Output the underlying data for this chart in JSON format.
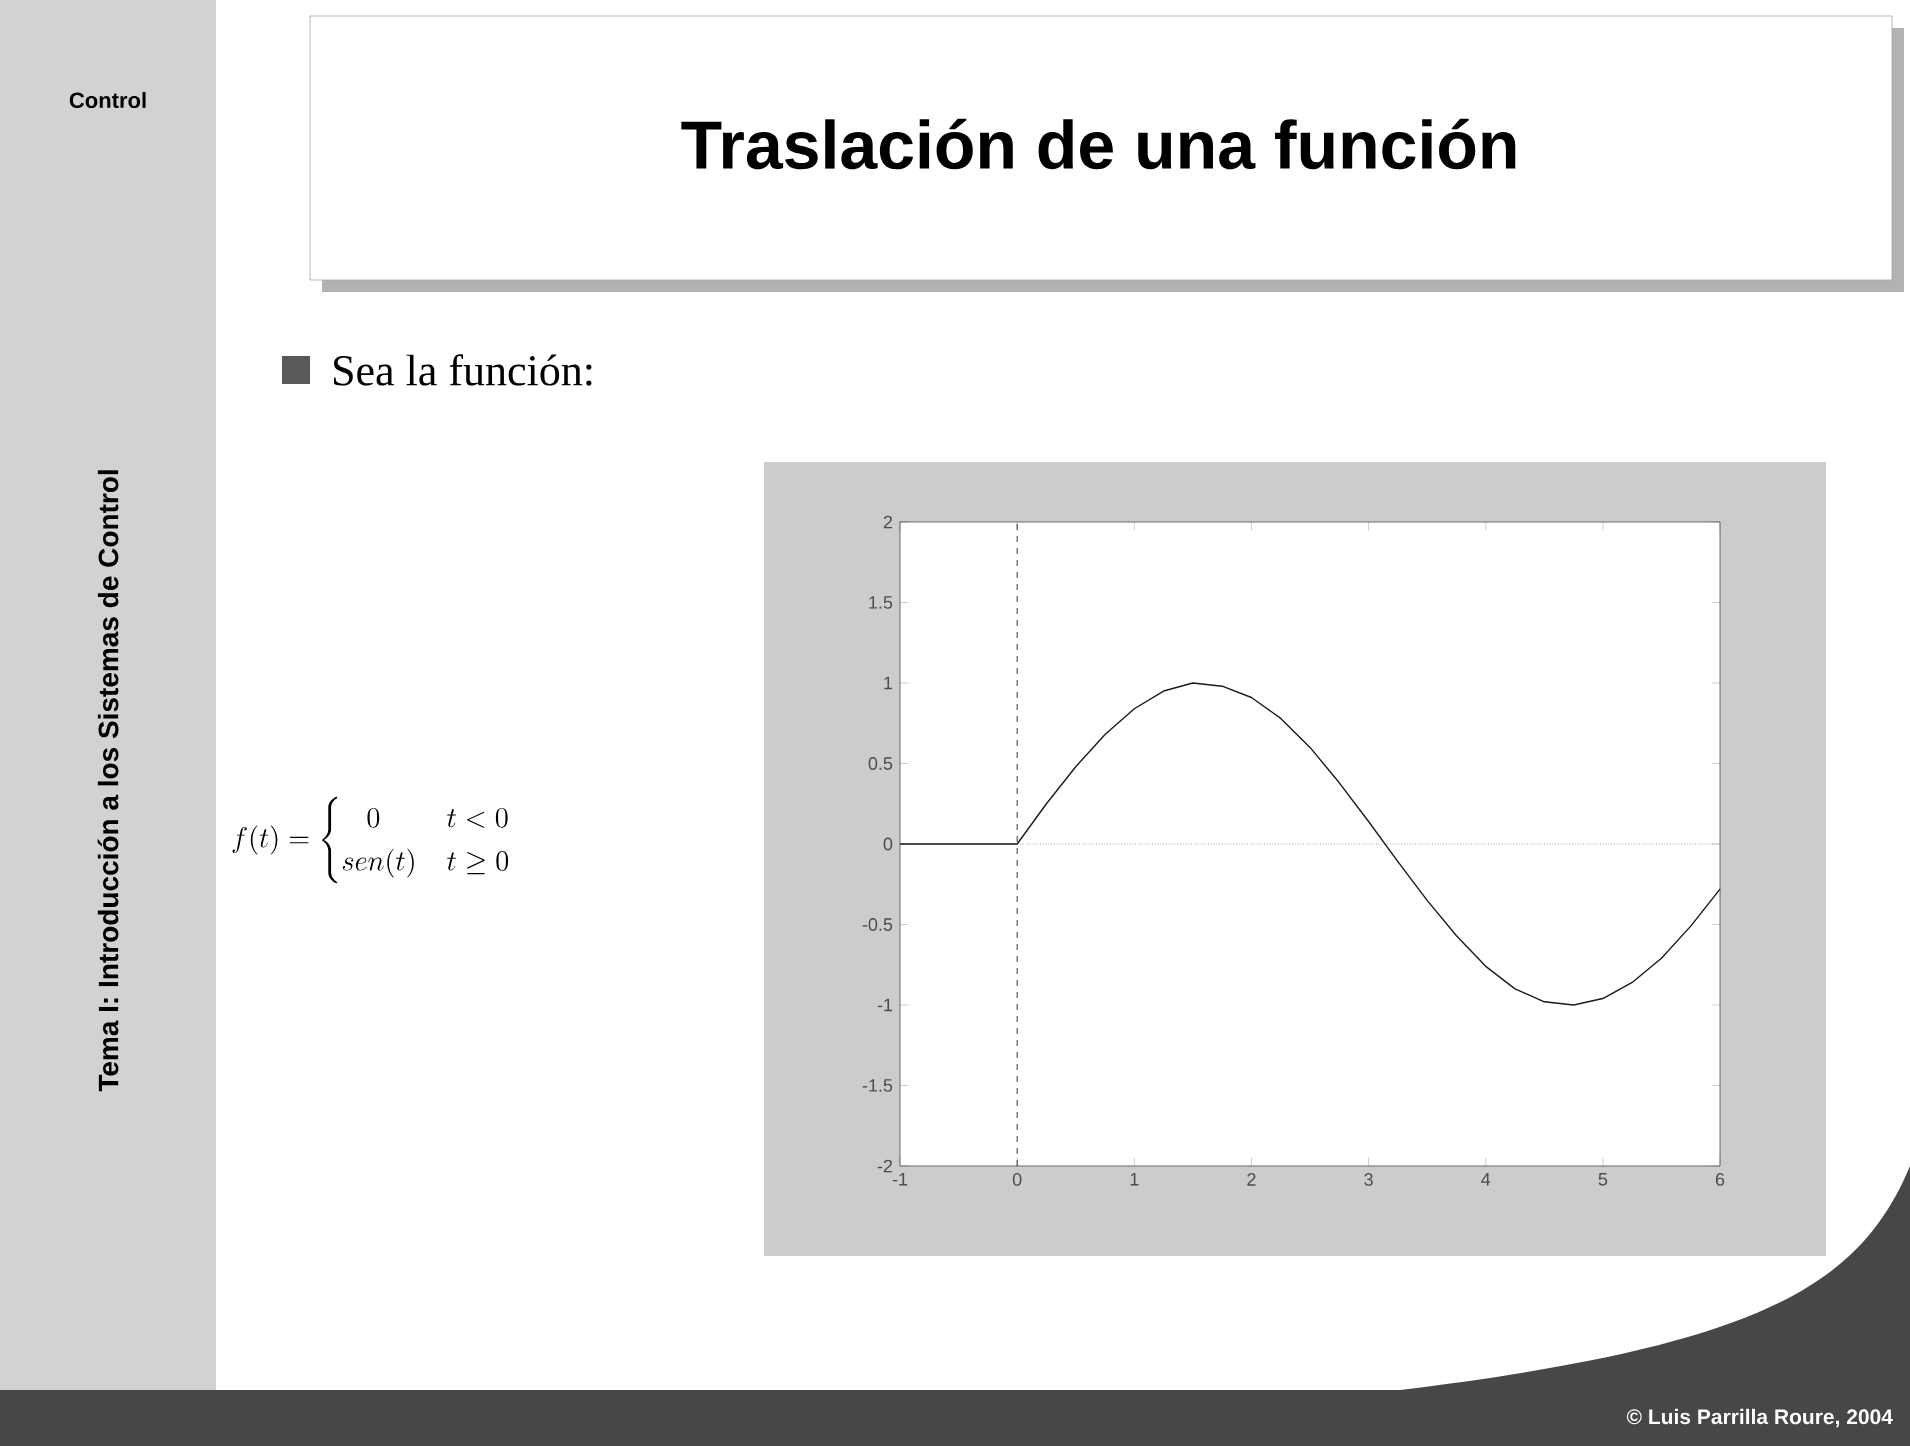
{
  "chart_data": {
    "type": "line",
    "title": "Traslación de una función",
    "annotations": [
      "Control",
      "Tema I: Introducción a los Sistemas de Control",
      "Sea la función:",
      "f(t)=\\begin{cases}\\ \\ \\ 0 & t<0\\\\ sen(t) & t\\geq 0\\end{cases}",
      "© Luis Parrilla Roure, 2004"
    ],
    "x": [
      -1,
      0,
      0.25,
      0.5,
      0.75,
      1,
      1.25,
      1.5,
      1.75,
      2,
      2.25,
      2.5,
      2.75,
      3,
      3.25,
      3.5,
      3.75,
      4,
      4.25,
      4.5,
      4.75,
      5,
      5.25,
      5.5,
      5.75,
      6
    ],
    "series": [
      {
        "color": "#1a1a1a",
        "values": [
          0,
          0,
          0.25,
          0.48,
          0.68,
          0.84,
          0.95,
          1.0,
          0.98,
          0.91,
          0.78,
          0.6,
          0.38,
          0.14,
          -0.11,
          -0.35,
          -0.57,
          -0.76,
          -0.9,
          -0.98,
          -1.0,
          -0.96,
          -0.86,
          -0.71,
          -0.51,
          -0.28
        ]
      }
    ],
    "xlim": [
      -1,
      6
    ],
    "xticks": [
      -1,
      0,
      1,
      2,
      3,
      4,
      5,
      6
    ],
    "ylim": [
      -2,
      2
    ],
    "yticks": [
      -2,
      -1.5,
      -1,
      -0.5,
      0,
      0.5,
      1,
      1.5,
      2
    ],
    "ref_lines": [
      {
        "axis": "x",
        "value": 0,
        "line_style": "dashed",
        "color": "#000000"
      },
      {
        "axis": "y",
        "value": 0,
        "line_style": "dotted",
        "color": "#808080"
      }
    ],
    "grid": false,
    "marker": "none",
    "line_style": "solid"
  }
}
